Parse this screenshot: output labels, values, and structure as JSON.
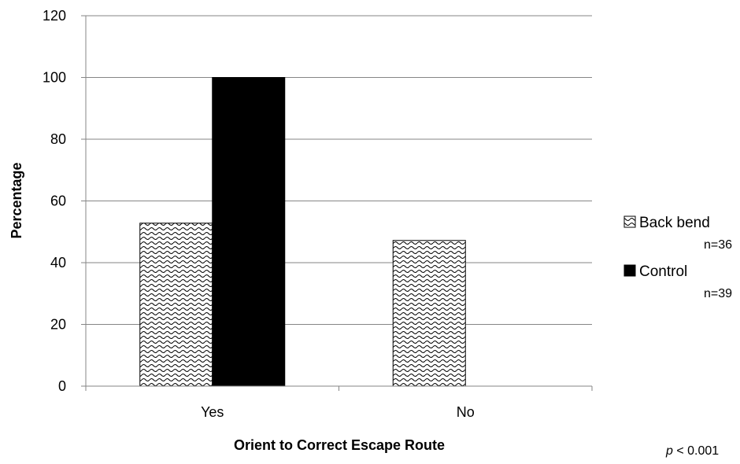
{
  "chart_data": {
    "type": "bar",
    "categories": [
      "Yes",
      "No"
    ],
    "series": [
      {
        "name": "Back bend",
        "n_label": "n=36",
        "values": [
          52.8,
          47.2
        ],
        "pattern": "wave",
        "color": "#000000"
      },
      {
        "name": "Control",
        "n_label": "n=39",
        "values": [
          100,
          0
        ],
        "pattern": "solid",
        "color": "#000000"
      }
    ],
    "xlabel": "Orient to Correct Escape Route",
    "ylabel": "Percentage",
    "ylim": [
      0,
      120
    ],
    "yticks": [
      0,
      20,
      40,
      60,
      80,
      100,
      120
    ],
    "grid": true,
    "legend_position": "right"
  },
  "note": {
    "p_symbol": "p",
    "p_text": " < 0.001"
  }
}
